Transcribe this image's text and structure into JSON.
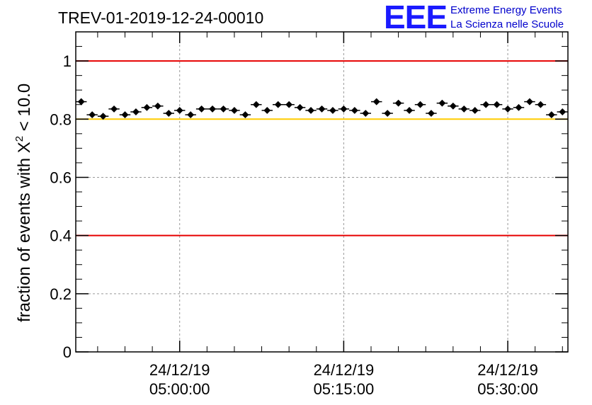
{
  "chart_data": {
    "type": "scatter",
    "title": "TREV-01-2019-12-24-00010",
    "ylabel_prefix": "fraction of events with X",
    "ylabel_sup": "2",
    "ylabel_suffix": " < 10.0",
    "xlabel": "",
    "ylim": [
      0,
      1.1
    ],
    "x_minutes_range": [
      -9.5,
      35.5
    ],
    "y_ticks": [
      "0",
      "0.2",
      "0.4",
      "0.6",
      "0.8",
      "1"
    ],
    "y_tick_values": [
      0,
      0.2,
      0.4,
      0.6,
      0.8,
      1.0
    ],
    "x_ticks": [
      {
        "minute": 0,
        "date": "24/12/19",
        "time": "05:00:00"
      },
      {
        "minute": 15,
        "date": "24/12/19",
        "time": "05:15:00"
      },
      {
        "minute": 30,
        "date": "24/12/19",
        "time": "05:30:00"
      }
    ],
    "reference_lines": [
      {
        "y": 1.0,
        "color": "#e60000"
      },
      {
        "y": 0.4,
        "color": "#e60000"
      },
      {
        "y": 0.8,
        "color": "#ffcc00"
      }
    ],
    "grid": true,
    "marker_color": "#000000",
    "series": [
      {
        "name": "fraction",
        "x_minutes": [
          -9,
          -8,
          -7,
          -6,
          -5,
          -4,
          -3,
          -2,
          -1,
          0,
          1,
          2,
          3,
          4,
          5,
          6,
          7,
          8,
          9,
          10,
          11,
          12,
          13,
          14,
          15,
          16,
          17,
          18,
          19,
          20,
          21,
          22,
          23,
          24,
          25,
          26,
          27,
          28,
          29,
          30,
          31,
          32,
          33,
          34,
          35
        ],
        "values": [
          0.86,
          0.815,
          0.81,
          0.835,
          0.815,
          0.825,
          0.84,
          0.845,
          0.82,
          0.83,
          0.815,
          0.835,
          0.835,
          0.835,
          0.83,
          0.815,
          0.85,
          0.83,
          0.85,
          0.85,
          0.84,
          0.83,
          0.835,
          0.83,
          0.835,
          0.83,
          0.82,
          0.86,
          0.82,
          0.855,
          0.83,
          0.85,
          0.82,
          0.855,
          0.845,
          0.835,
          0.83,
          0.85,
          0.85,
          0.835,
          0.84,
          0.86,
          0.85,
          0.815,
          0.825
        ],
        "error": 0.009
      }
    ],
    "logo": {
      "mark": "EEE",
      "line1": "Extreme Energy Events",
      "line2": "La Scienza nelle Scuole"
    }
  }
}
